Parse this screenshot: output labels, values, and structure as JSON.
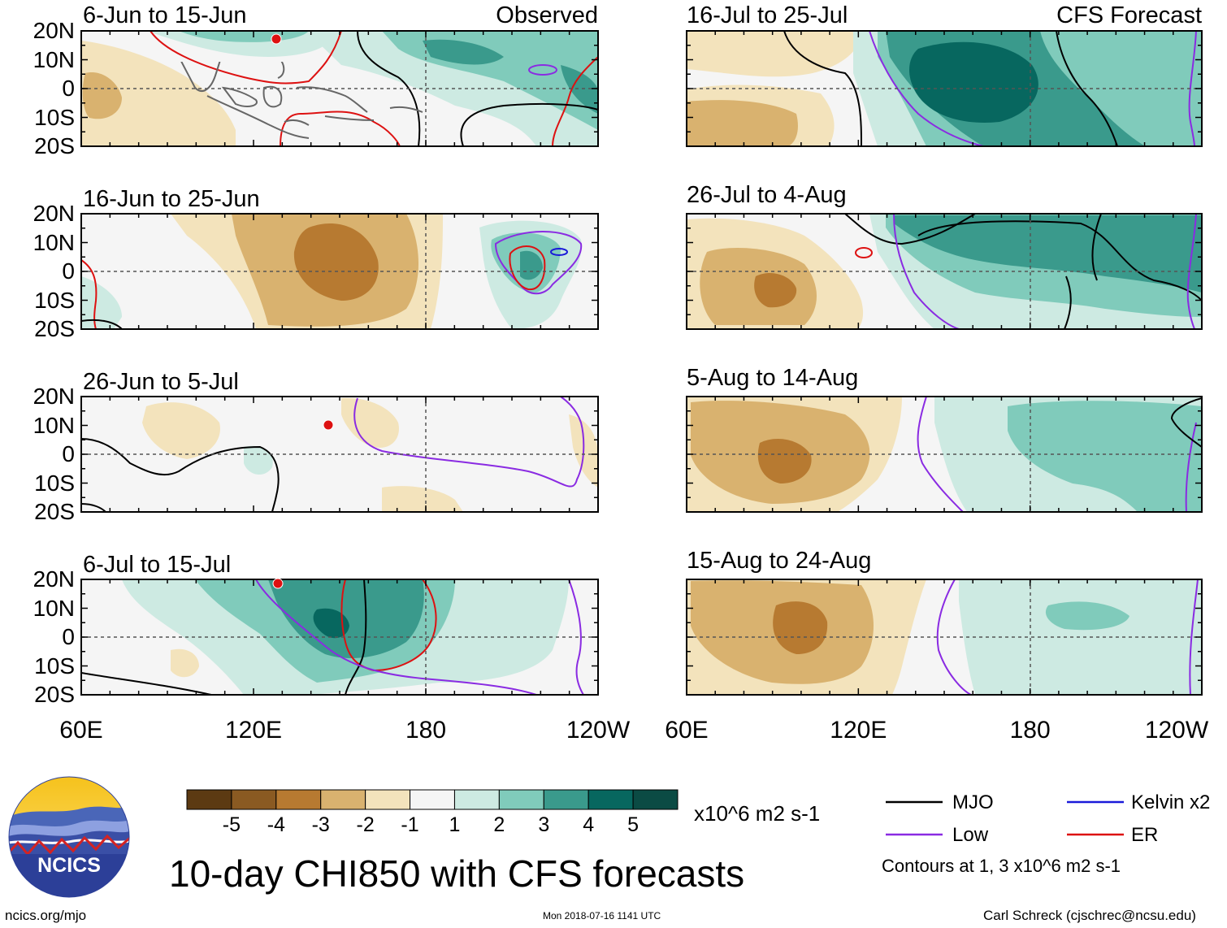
{
  "chart_data": {
    "type": "heatmap",
    "title": "10-day CHI850 with CFS forecasts",
    "units": "x10^6 m2 s-1",
    "x_ticks": [
      "60E",
      "120E",
      "180",
      "120W"
    ],
    "y_ticks": [
      "20N",
      "10N",
      "0",
      "10S",
      "20S"
    ],
    "column_headers": [
      "Observed",
      "CFS Forecast"
    ],
    "colorbar": {
      "labels": [
        "-5",
        "-4",
        "-3",
        "-2",
        "-1",
        "1",
        "2",
        "3",
        "4",
        "5"
      ],
      "colors": [
        "#5c3a12",
        "#8a5a22",
        "#b77a31",
        "#d9b26f",
        "#f3e3bc",
        "#f5f5f5",
        "#cdeae2",
        "#80cbbb",
        "#3a9a8c",
        "#07675f",
        "#0b4b44"
      ]
    },
    "panels": [
      {
        "period": "6-Jun to 15-Jun",
        "column": "observed"
      },
      {
        "period": "16-Jun to 25-Jun",
        "column": "observed"
      },
      {
        "period": "26-Jun to 5-Jul",
        "column": "observed"
      },
      {
        "period": "6-Jul to 15-Jul",
        "column": "observed"
      },
      {
        "period": "16-Jul to 25-Jul",
        "column": "forecast"
      },
      {
        "period": "26-Jul to 4-Aug",
        "column": "forecast"
      },
      {
        "period": "5-Aug to 14-Aug",
        "column": "forecast"
      },
      {
        "period": "15-Aug to 24-Aug",
        "column": "forecast"
      }
    ],
    "legend": {
      "items": [
        {
          "label": "MJO",
          "color": "#000000"
        },
        {
          "label": "Low",
          "color": "#8a2be2"
        },
        {
          "label": "Kelvin x2",
          "color": "#1a1ad9"
        },
        {
          "label": "ER",
          "color": "#dd1111"
        }
      ],
      "note": "Contours at 1, 3 x10^6 m2 s-1"
    }
  },
  "logo": {
    "text": "NCICS"
  },
  "footer": {
    "left": "ncics.org/mjo",
    "center": "Mon 2018-07-16 1141 UTC",
    "right": "Carl Schreck (cjschrec@ncsu.edu)"
  }
}
